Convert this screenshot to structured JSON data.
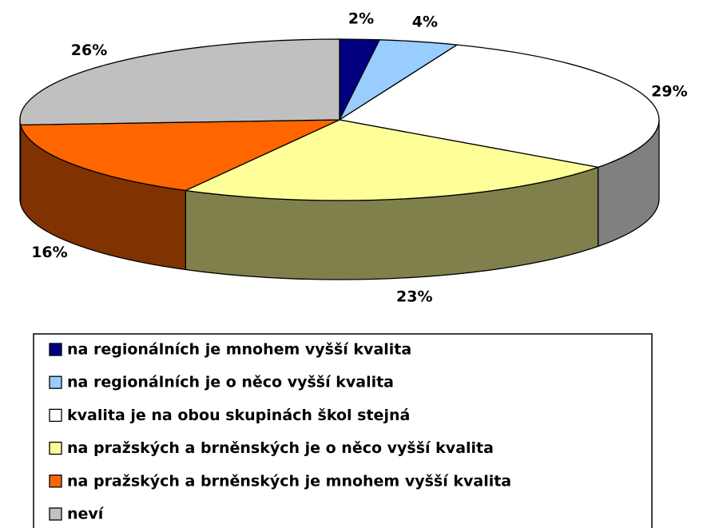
{
  "chart_data": {
    "type": "pie3d",
    "series": [
      {
        "name": "na regionálních je mnohem vyšší kvalita",
        "color": "#000080"
      },
      {
        "name": "na regionálních je o něco vyšší kvalita",
        "color": "#99ccff"
      },
      {
        "name": "kvalita je na obou skupinách škol stejná",
        "color": "#ffffff"
      },
      {
        "name": "na pražských a brněnských je o něco vyšší kvalita",
        "color": "#ffff99"
      },
      {
        "name": "na pražských a brněnských je mnohem vyšší kvalita",
        "color": "#ff6600"
      },
      {
        "name": "neví",
        "color": "#c0c0c0"
      }
    ],
    "values": [
      2,
      4,
      29,
      23,
      16,
      26
    ],
    "value_labels": [
      "2%",
      "4%",
      "29%",
      "23%",
      "16%",
      "26%"
    ]
  }
}
